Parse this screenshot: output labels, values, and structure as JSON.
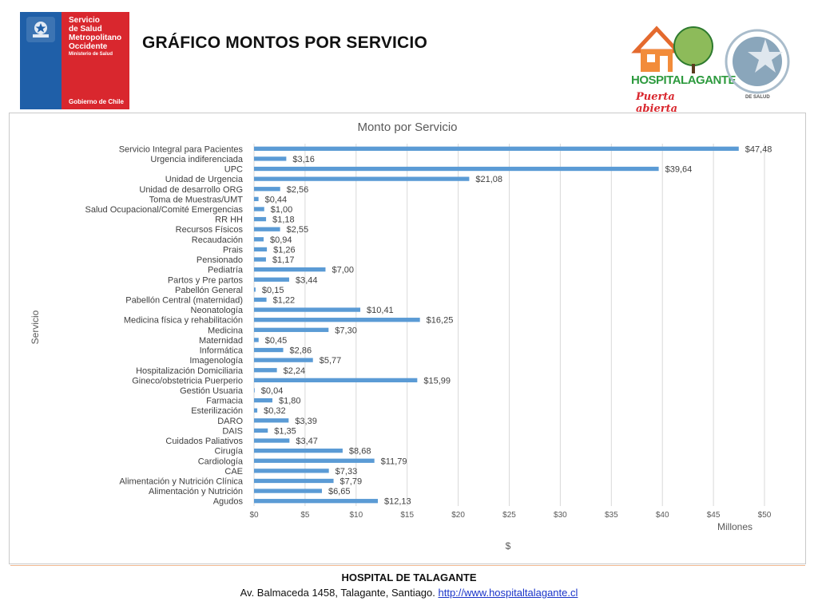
{
  "header": {
    "logo_left": {
      "line1": "Servicio\nde Salud\nMetropolitano\nOccidente",
      "line2": "Ministerio de Salud",
      "line3": "Gobierno de Chile"
    },
    "title": "GRÁFICO MONTOS POR SERVICIO",
    "logo_right": {
      "brand": "HOSPITALAGANTE",
      "tagline": "Puerta abierta",
      "seal_label": "DE SALUD",
      "colors": {
        "house": "#e46a2e",
        "tree": "#6ab04c",
        "seal": "#7fa0b8"
      }
    }
  },
  "chart_data": {
    "type": "bar",
    "orientation": "horizontal",
    "title": "Monto por Servicio",
    "ylabel": "Servicio",
    "xlabel": "$",
    "x_unit": "Millones",
    "xlim": [
      0,
      50
    ],
    "xticks": [
      "$0",
      "$5",
      "$10",
      "$15",
      "$20",
      "$25",
      "$30",
      "$35",
      "$40",
      "$45",
      "$50"
    ],
    "grid": true,
    "color": "#5b9bd5",
    "categories": [
      "Servicio Integral para Pacientes",
      "Urgencia indiferenciada",
      "UPC",
      "Unidad de Urgencia",
      "Unidad de desarrollo ORG",
      "Toma de Muestras/UMT",
      "Salud Ocupacional/Comité Emergencias",
      "RR HH",
      "Recursos Físicos",
      "Recaudación",
      "Prais",
      "Pensionado",
      "Pediatría",
      "Partos y Pre partos",
      "Pabellón General",
      "Pabellón Central (maternidad)",
      "Neonatología",
      "Medicina física y rehabilitación",
      "Medicina",
      "Maternidad",
      "Informática",
      "Imagenología",
      "Hospitalización Domiciliaria",
      "Gineco/obstetricia Puerperio",
      "Gestión Usuaria",
      "Farmacia",
      "Esterilización",
      "DARO",
      "DAIS",
      "Cuidados Paliativos",
      "Cirugía",
      "Cardiología",
      "CAE",
      "Alimentación y Nutrición Clínica",
      "Alimentación y Nutrición",
      "Agudos"
    ],
    "values": [
      47.48,
      3.16,
      39.64,
      21.08,
      2.56,
      0.44,
      1.0,
      1.18,
      2.55,
      0.94,
      1.26,
      1.17,
      7.0,
      3.44,
      0.15,
      1.22,
      10.41,
      16.25,
      7.3,
      0.45,
      2.86,
      5.77,
      2.24,
      15.99,
      0.04,
      1.8,
      0.32,
      3.39,
      1.35,
      3.47,
      8.68,
      11.79,
      7.33,
      7.79,
      6.65,
      12.13
    ],
    "data_labels": [
      "$47,48",
      "$3,16",
      "$39,64",
      "$21,08",
      "$2,56",
      "$0,44",
      "$1,00",
      "$1,18",
      "$2,55",
      "$0,94",
      "$1,26",
      "$1,17",
      "$7,00",
      "$3,44",
      "$0,15",
      "$1,22",
      "$10,41",
      "$16,25",
      "$7,30",
      "$0,45",
      "$2,86",
      "$5,77",
      "$2,24",
      "$15,99",
      "$0,04",
      "$1,80",
      "$0,32",
      "$3,39",
      "$1,35",
      "$3,47",
      "$8,68",
      "$11,79",
      "$7,33",
      "$7,79",
      "$6,65",
      "$12,13"
    ]
  },
  "footer": {
    "org": "HOSPITAL DE TALAGANTE",
    "address": "Av. Balmaceda 1458, Talagante, Santiago. ",
    "url": "http://www.hospitaltalagante.cl"
  }
}
